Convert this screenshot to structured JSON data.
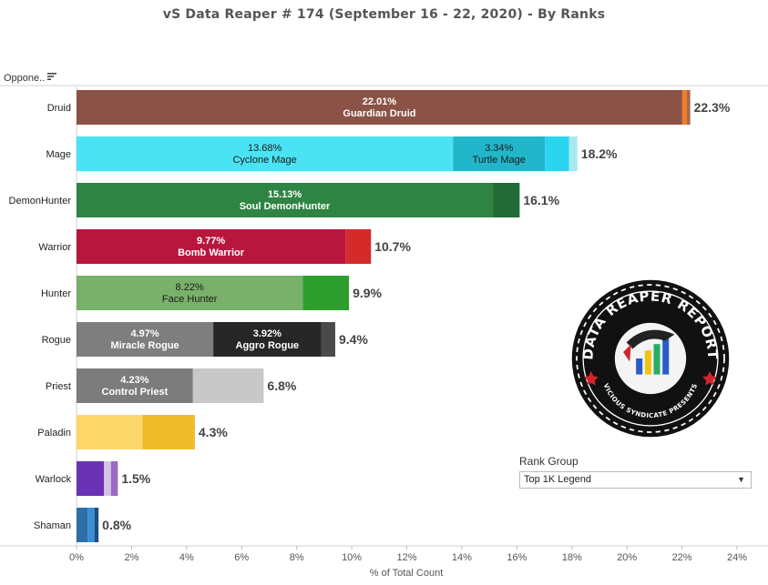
{
  "title": "vS Data Reaper #  174 (September 16 - 22, 2020) - By Ranks",
  "field_header": "Oppone..",
  "logo_text": {
    "top": "DATA REAPER REPORT",
    "bottom": "VICIOUS SYNDICATE PRESENTS"
  },
  "filter": {
    "label": "Rank Group",
    "selected": "Top 1K Legend"
  },
  "icons": {
    "sort": "sort-descending-icon",
    "dropdown": "chevron-down-icon"
  },
  "chart_data": {
    "type": "bar",
    "orientation": "horizontal",
    "stacked": true,
    "xlabel": "% of Total Count",
    "xlim": [
      0,
      24
    ],
    "x_ticks": [
      "0%",
      "2%",
      "4%",
      "6%",
      "8%",
      "10%",
      "12%",
      "14%",
      "16%",
      "18%",
      "20%",
      "22%",
      "24%"
    ],
    "grid": false,
    "categories": [
      "Druid",
      "Mage",
      "DemonHunter",
      "Warrior",
      "Hunter",
      "Rogue",
      "Priest",
      "Paladin",
      "Warlock",
      "Shaman"
    ],
    "totals": [
      "22.3%",
      "18.2%",
      "16.1%",
      "10.7%",
      "9.9%",
      "9.4%",
      "6.8%",
      "4.3%",
      "1.5%",
      "0.8%"
    ],
    "rows": [
      {
        "class": "Druid",
        "segments": [
          {
            "value": 22.01,
            "color": "#8b5346",
            "label": "Guardian Druid",
            "pct": "22.01%"
          },
          {
            "value": 0.17,
            "color": "#ef7e26"
          },
          {
            "value": 0.12,
            "color": "#a8664f"
          }
        ]
      },
      {
        "class": "Mage",
        "segments": [
          {
            "value": 13.68,
            "color": "#4ae3f4",
            "label": "Cyclone Mage",
            "pct": "13.68%"
          },
          {
            "value": 3.34,
            "color": "#22b6ca",
            "label": "Turtle Mage",
            "pct": "3.34%"
          },
          {
            "value": 0.88,
            "color": "#2ad4ee"
          },
          {
            "value": 0.3,
            "color": "#a8e9f1"
          }
        ]
      },
      {
        "class": "DemonHunter",
        "segments": [
          {
            "value": 15.13,
            "color": "#2e8442",
            "label": "Soul DemonHunter",
            "pct": "15.13%"
          },
          {
            "value": 0.97,
            "color": "#226b37"
          }
        ]
      },
      {
        "class": "Warrior",
        "segments": [
          {
            "value": 9.77,
            "color": "#b8163d",
            "label": "Bomb Warrior",
            "pct": "9.77%"
          },
          {
            "value": 0.93,
            "color": "#d52a2a"
          }
        ]
      },
      {
        "class": "Hunter",
        "segments": [
          {
            "value": 8.22,
            "color": "#79b16a",
            "label": "Face Hunter",
            "pct": "8.22%"
          },
          {
            "value": 1.68,
            "color": "#2e9e2e"
          }
        ]
      },
      {
        "class": "Rogue",
        "segments": [
          {
            "value": 4.97,
            "color": "#7e7e7e",
            "label": "Miracle Rogue",
            "pct": "4.97%"
          },
          {
            "value": 3.92,
            "color": "#262626",
            "label": "Aggro Rogue",
            "pct": "3.92%"
          },
          {
            "value": 0.51,
            "color": "#4a4a4a"
          }
        ]
      },
      {
        "class": "Priest",
        "segments": [
          {
            "value": 4.23,
            "color": "#7c7c7c",
            "label": "Control Priest",
            "pct": "4.23%"
          },
          {
            "value": 2.57,
            "color": "#c8c8c8"
          }
        ]
      },
      {
        "class": "Paladin",
        "segments": [
          {
            "value": 2.4,
            "color": "#fdd76a"
          },
          {
            "value": 1.9,
            "color": "#f0bc2c"
          }
        ]
      },
      {
        "class": "Warlock",
        "segments": [
          {
            "value": 1.0,
            "color": "#6a32b4"
          },
          {
            "value": 0.25,
            "color": "#d2c4e2"
          },
          {
            "value": 0.25,
            "color": "#9a6ac6"
          }
        ]
      },
      {
        "class": "Shaman",
        "segments": [
          {
            "value": 0.4,
            "color": "#2f6ea6"
          },
          {
            "value": 0.25,
            "color": "#3b8ed6"
          },
          {
            "value": 0.15,
            "color": "#1e4f7e"
          }
        ]
      }
    ]
  }
}
